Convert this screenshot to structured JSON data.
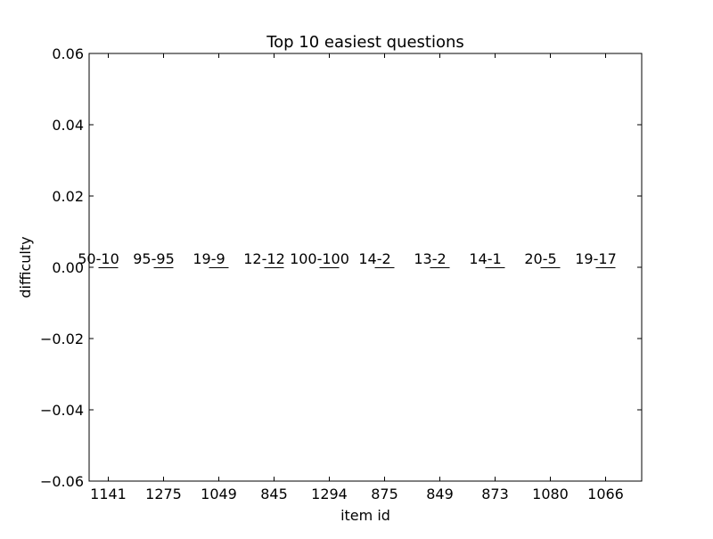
{
  "chart_data": {
    "type": "bar",
    "title": "Top 10 easiest questions",
    "xlabel": "item id",
    "ylabel": "difficulty",
    "categories": [
      "1141",
      "1275",
      "1049",
      "845",
      "1294",
      "875",
      "849",
      "873",
      "1080",
      "1066"
    ],
    "values": [
      0,
      0,
      0,
      0,
      0,
      0,
      0,
      0,
      0,
      0
    ],
    "bar_labels": [
      "50-10",
      "95-95",
      "19-9",
      "12-12",
      "100-100",
      "14-2",
      "13-2",
      "14-1",
      "20-5",
      "19-17"
    ],
    "ylim": [
      -0.06,
      0.06
    ],
    "yticks": [
      -0.06,
      -0.04,
      -0.02,
      0.0,
      0.02,
      0.04,
      0.06
    ],
    "ytick_labels": [
      "−0.06",
      "−0.04",
      "−0.02",
      "0.00",
      "0.02",
      "0.04",
      "0.06"
    ],
    "grid": false,
    "bar_color": "#000000"
  }
}
